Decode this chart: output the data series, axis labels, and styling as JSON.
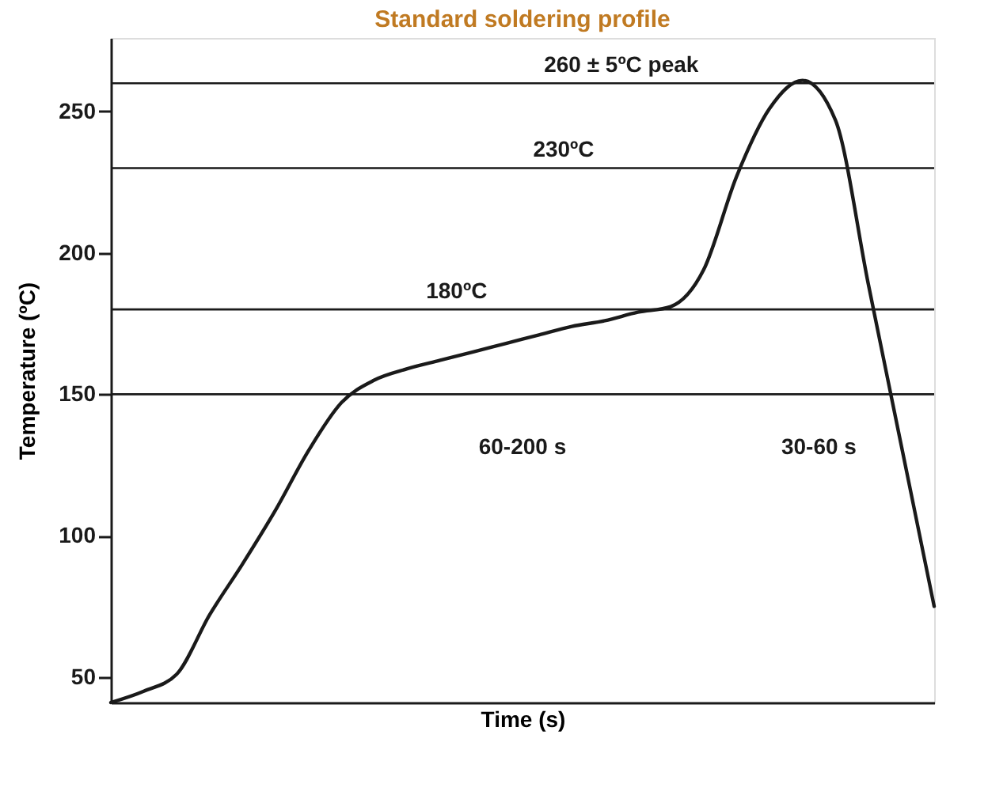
{
  "chart_data": {
    "type": "line",
    "title": "Standard soldering profile",
    "xlabel": "Time (s)",
    "ylabel": "Temperature (ºC)",
    "categories": [
      null,
      null,
      null,
      null,
      null,
      null,
      null,
      null,
      null,
      null,
      null,
      null,
      null,
      null,
      null,
      null,
      null,
      null,
      null,
      null,
      null,
      null,
      null,
      null,
      null,
      null
    ],
    "series": [
      {
        "color": "#1a1a1a",
        "values": [
          41,
          45,
          51,
          72,
          90,
          109,
          130,
          147,
          155,
          159,
          162,
          165,
          168,
          171,
          174,
          176,
          179,
          181,
          194,
          227,
          251,
          261,
          247,
          189,
          132,
          75
        ]
      }
    ],
    "ylim": [
      41,
      276
    ],
    "yticks": [
      50,
      100,
      150,
      200,
      250
    ],
    "grid": false,
    "tick_labels": "y",
    "marker": "none",
    "line_style": "solid",
    "ref_lines": [
      {
        "axis": "y",
        "value": 260,
        "label": "260 ± 5ºC peak"
      },
      {
        "axis": "y",
        "value": 230,
        "label": "230ºC"
      },
      {
        "axis": "y",
        "value": 180,
        "label": "180ºC"
      },
      {
        "axis": "y",
        "value": 150
      }
    ],
    "annotations": [
      "60-200 s",
      "30-60 s"
    ]
  }
}
